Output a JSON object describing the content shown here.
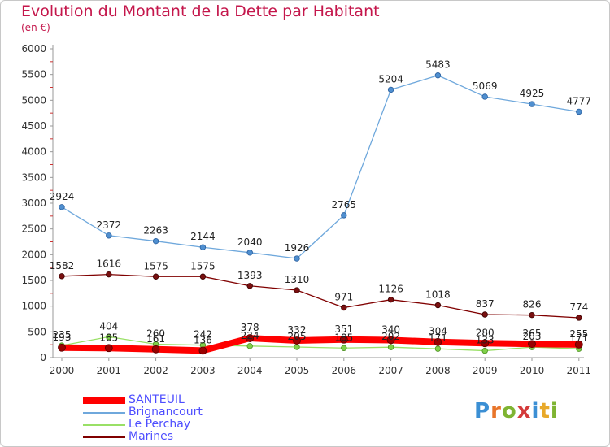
{
  "page": {
    "title": "Evolution du Montant de la Dette par Habitant",
    "unit": "(en €)"
  },
  "brand": {
    "letters": [
      "P",
      "r",
      "o",
      "x",
      "i",
      "t",
      "i"
    ],
    "colors": [
      "#3b8fd4",
      "#e8752a",
      "#7fb432",
      "#d43b3b",
      "#3b8fd4",
      "#e8a92a",
      "#7fb432"
    ]
  },
  "chart_data": {
    "type": "line",
    "title": "Evolution du Montant de la Dette par Habitant",
    "subtitle": "(en €)",
    "xlabel": "",
    "ylabel": "",
    "x": [
      "2000",
      "2001",
      "2002",
      "2003",
      "2004",
      "2005",
      "2006",
      "2007",
      "2008",
      "2009",
      "2010",
      "2011"
    ],
    "ylim": [
      0,
      6000
    ],
    "yticks": [
      0,
      500,
      1000,
      1500,
      2000,
      2500,
      3000,
      3500,
      4000,
      4500,
      5000,
      5500,
      6000
    ],
    "grid": false,
    "legend_position": "bottom-left",
    "series": [
      {
        "name": "SANTEUIL",
        "color": "#ff0000",
        "values": [
          193,
          185,
          161,
          136,
          378,
          332,
          351,
          340,
          304,
          280,
          265,
          255
        ],
        "labels": [
          "193",
          "185",
          "161",
          "136",
          "378",
          "332",
          "351",
          "340",
          "304",
          "280",
          "265",
          "255"
        ]
      },
      {
        "name": "Brignancourt",
        "color": "#6fa8dc",
        "values": [
          2924,
          2372,
          2263,
          2144,
          2040,
          1926,
          2765,
          5204,
          5483,
          5069,
          4925,
          4777
        ],
        "labels": [
          "2924",
          "2372",
          "2263",
          "2144",
          "2040",
          "1926",
          "2765",
          "5204",
          "5483",
          "5069",
          "4925",
          "4777"
        ]
      },
      {
        "name": "Le Perchay",
        "color": "#99e066",
        "values": [
          235,
          404,
          260,
          242,
          224,
          205,
          185,
          202,
          171,
          133,
          203,
          171
        ],
        "labels": [
          "235",
          "404",
          "260",
          "242",
          "224",
          "205",
          "185",
          "202",
          "171",
          "133",
          "203",
          "171"
        ]
      },
      {
        "name": "Marines",
        "color": "#800000",
        "values": [
          1582,
          1616,
          1575,
          1575,
          1393,
          1310,
          971,
          1126,
          1018,
          837,
          826,
          774
        ],
        "labels": [
          "1582",
          "1616",
          "1575",
          "1575",
          "1393",
          "1310",
          "971",
          "1126",
          "1018",
          "837",
          "826",
          "774"
        ]
      }
    ]
  }
}
